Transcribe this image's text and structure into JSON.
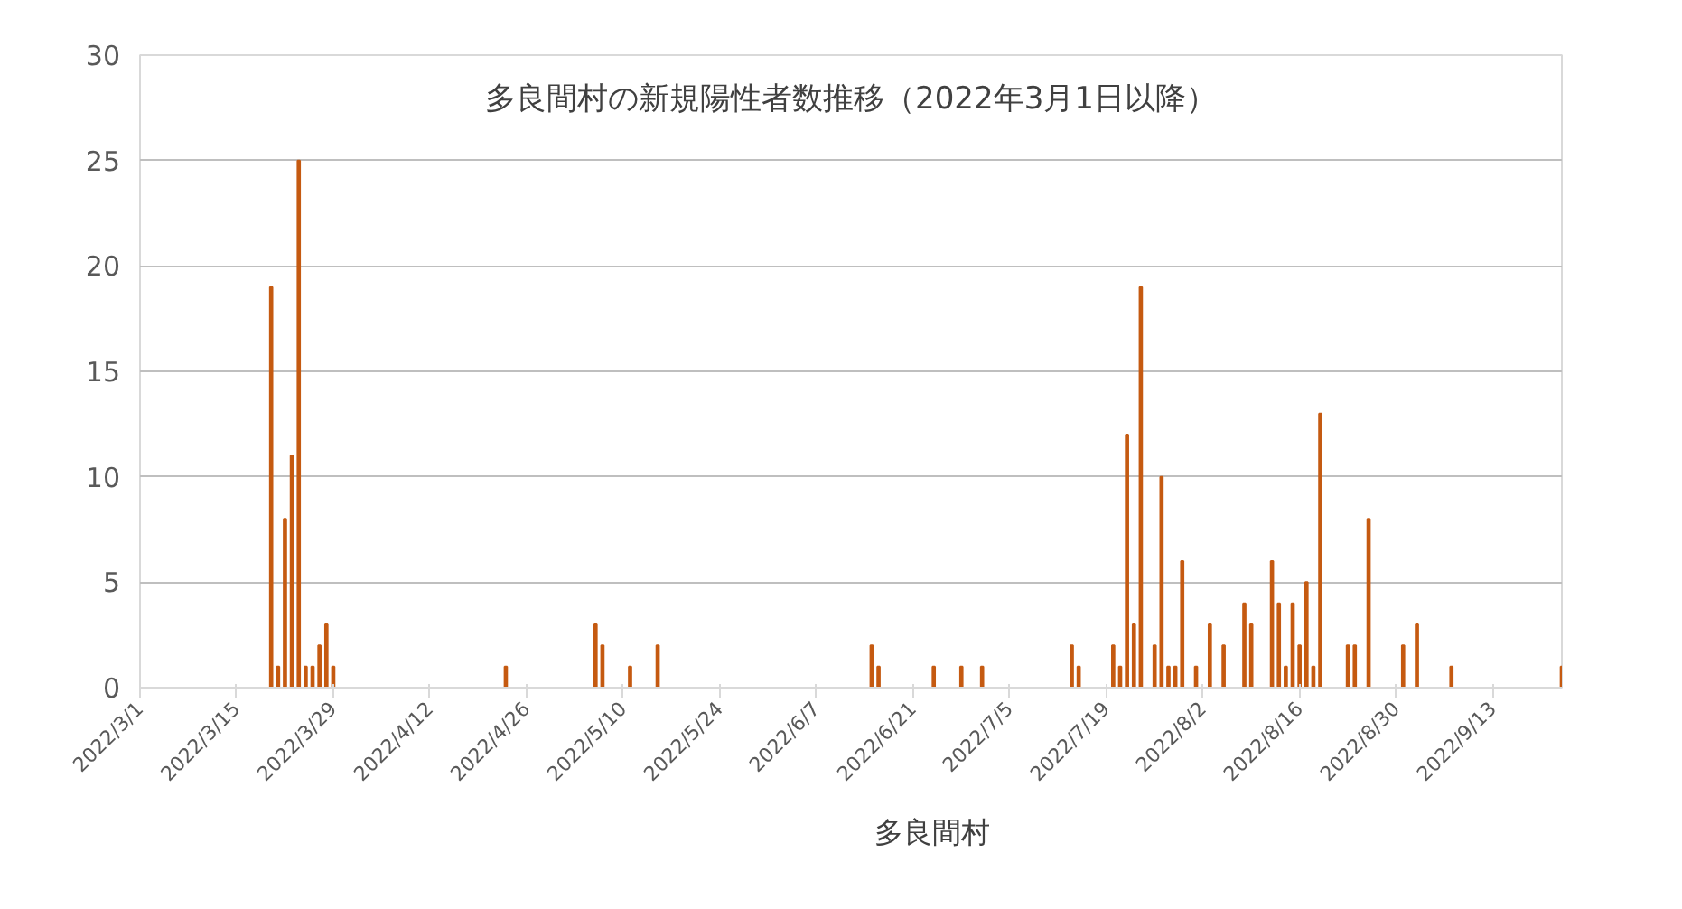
{
  "chart_data": {
    "type": "bar",
    "title": "多良間村の新規陽性者数推移（2022年3月1日以降）",
    "x": [
      "2022-03-20",
      "2022-03-21",
      "2022-03-22",
      "2022-03-23",
      "2022-03-24",
      "2022-03-25",
      "2022-03-26",
      "2022-03-27",
      "2022-03-28",
      "2022-03-29",
      "2022-04-23",
      "2022-05-06",
      "2022-05-07",
      "2022-05-11",
      "2022-05-15",
      "2022-06-15",
      "2022-06-16",
      "2022-06-24",
      "2022-06-28",
      "2022-07-01",
      "2022-07-14",
      "2022-07-15",
      "2022-07-20",
      "2022-07-21",
      "2022-07-22",
      "2022-07-23",
      "2022-07-24",
      "2022-07-26",
      "2022-07-27",
      "2022-07-28",
      "2022-07-29",
      "2022-07-30",
      "2022-08-01",
      "2022-08-03",
      "2022-08-05",
      "2022-08-08",
      "2022-08-09",
      "2022-08-12",
      "2022-08-13",
      "2022-08-14",
      "2022-08-15",
      "2022-08-16",
      "2022-08-17",
      "2022-08-18",
      "2022-08-19",
      "2022-08-23",
      "2022-08-24",
      "2022-08-26",
      "2022-08-31",
      "2022-09-02",
      "2022-09-07",
      "2022-09-23"
    ],
    "series": [
      {
        "name": "多良間村",
        "color": "#c55a11",
        "values": [
          19,
          1,
          8,
          11,
          25,
          1,
          1,
          2,
          3,
          1,
          1,
          3,
          2,
          1,
          2,
          2,
          1,
          1,
          1,
          1,
          2,
          1,
          2,
          1,
          12,
          3,
          19,
          2,
          10,
          1,
          1,
          6,
          1,
          3,
          2,
          4,
          3,
          6,
          4,
          1,
          4,
          2,
          5,
          1,
          13,
          2,
          2,
          8,
          2,
          3,
          1,
          1
        ]
      }
    ],
    "xlim": [
      "2022-03-01",
      "2022-09-23"
    ],
    "xticks": [
      {
        "value": "2022-03-01",
        "label": "2022/3/1"
      },
      {
        "value": "2022-03-15",
        "label": "2022/3/15"
      },
      {
        "value": "2022-03-29",
        "label": "2022/3/29"
      },
      {
        "value": "2022-04-12",
        "label": "2022/4/12"
      },
      {
        "value": "2022-04-26",
        "label": "2022/4/26"
      },
      {
        "value": "2022-05-10",
        "label": "2022/5/10"
      },
      {
        "value": "2022-05-24",
        "label": "2022/5/24"
      },
      {
        "value": "2022-06-07",
        "label": "2022/6/7"
      },
      {
        "value": "2022-06-21",
        "label": "2022/6/21"
      },
      {
        "value": "2022-07-05",
        "label": "2022/7/5"
      },
      {
        "value": "2022-07-19",
        "label": "2022/7/19"
      },
      {
        "value": "2022-08-02",
        "label": "2022/8/2"
      },
      {
        "value": "2022-08-16",
        "label": "2022/8/16"
      },
      {
        "value": "2022-08-30",
        "label": "2022/8/30"
      },
      {
        "value": "2022-09-13",
        "label": "2022/9/13"
      }
    ],
    "ylim": [
      0,
      30
    ],
    "yticks": [
      0,
      5,
      10,
      15,
      20,
      25,
      30
    ],
    "grid": "y",
    "legend": "bottom"
  }
}
